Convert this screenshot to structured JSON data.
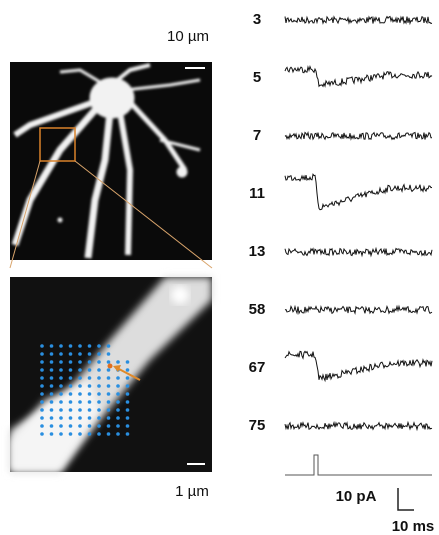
{
  "scale_bars": {
    "top_image": "10 µm",
    "bottom_image": "1 µm",
    "current": "10 pA",
    "time": "10 ms"
  },
  "traces": [
    {
      "label": "3"
    },
    {
      "label": "5"
    },
    {
      "label": "7"
    },
    {
      "label": "11"
    },
    {
      "label": "13"
    },
    {
      "label": "58"
    },
    {
      "label": "67"
    },
    {
      "label": "75"
    }
  ]
}
